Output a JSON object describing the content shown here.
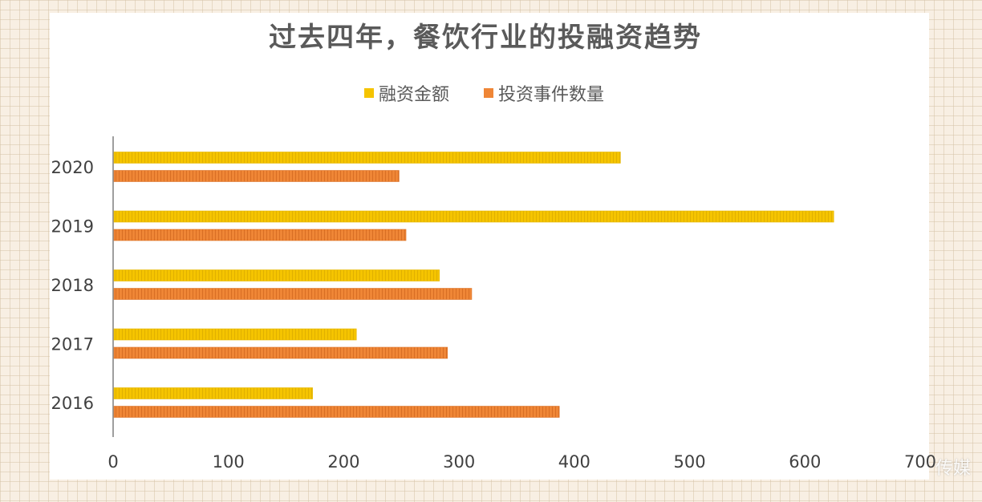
{
  "chart_data": {
    "type": "bar",
    "orientation": "horizontal",
    "title": "过去四年，餐饮行业的投融资趋势",
    "categories": [
      "2020",
      "2019",
      "2018",
      "2017",
      "2016"
    ],
    "series": [
      {
        "name": "融资金额",
        "color": "#f5c400",
        "values": [
          440,
          625,
          283,
          211,
          173
        ]
      },
      {
        "name": "投资事件数量",
        "color": "#ef8636",
        "values": [
          248,
          254,
          311,
          290,
          387
        ]
      }
    ],
    "xlim": [
      0,
      700
    ],
    "x_ticks": [
      0,
      100,
      200,
      300,
      400,
      500,
      600,
      700
    ],
    "legend_position": "top-center",
    "grid": false
  },
  "watermark": "传媒"
}
